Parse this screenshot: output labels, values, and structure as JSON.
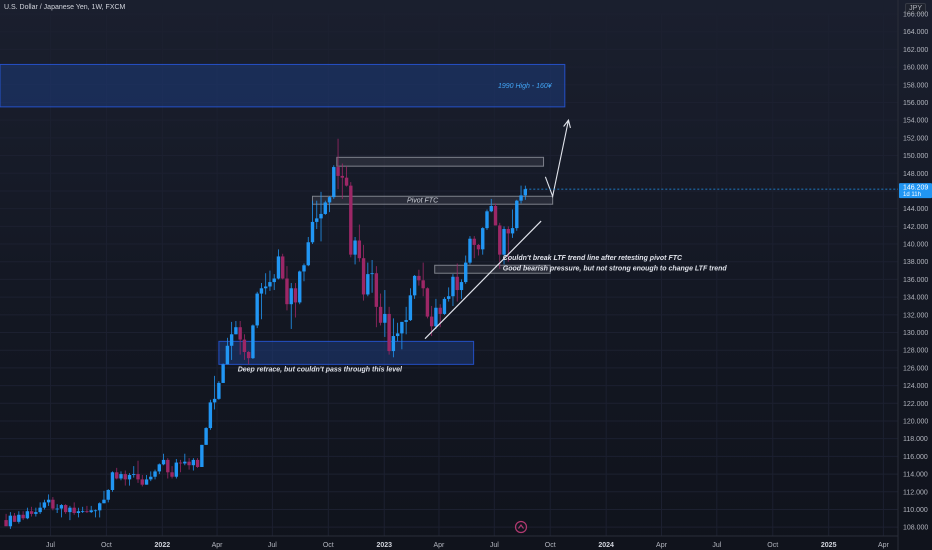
{
  "header": {
    "title": "U.S. Dollar / Japanese Yen, 1W, FXCM",
    "currency": "JPY"
  },
  "price_badge": {
    "price": "146.209",
    "countdown": "1d 11h"
  },
  "colors": {
    "background": "#131722",
    "bull": "#2196f3",
    "bear": "#9c2766",
    "grid": "#1c2030",
    "zone": "#1e3a7a",
    "text": "#b2b5be"
  },
  "chart_data": {
    "type": "candlestick",
    "ylim": [
      107,
      166
    ],
    "y_ticks": [
      108,
      110,
      112,
      114,
      116,
      118,
      120,
      122,
      124,
      126,
      128,
      130,
      132,
      134,
      136,
      138,
      140,
      142,
      144,
      146,
      148,
      150,
      152,
      154,
      156,
      158,
      160,
      162,
      164,
      166
    ],
    "x_ticks": [
      {
        "label": "Jul",
        "date": "2021-07-01"
      },
      {
        "label": "Oct",
        "date": "2021-10-01"
      },
      {
        "label": "2022",
        "date": "2022-01-01"
      },
      {
        "label": "Apr",
        "date": "2022-04-01"
      },
      {
        "label": "Jul",
        "date": "2022-07-01"
      },
      {
        "label": "Oct",
        "date": "2022-10-01"
      },
      {
        "label": "2023",
        "date": "2023-01-01"
      },
      {
        "label": "Apr",
        "date": "2023-04-01"
      },
      {
        "label": "Jul",
        "date": "2023-07-01"
      },
      {
        "label": "Oct",
        "date": "2023-10-01"
      },
      {
        "label": "2024",
        "date": "2024-01-01"
      },
      {
        "label": "Apr",
        "date": "2024-04-01"
      },
      {
        "label": "Jul",
        "date": "2024-07-01"
      },
      {
        "label": "Oct",
        "date": "2024-10-01"
      },
      {
        "label": "2025",
        "date": "2025-01-01"
      },
      {
        "label": "Apr",
        "date": "2025-04-01"
      }
    ],
    "x_range": [
      "2021-04-09",
      "2025-04-25"
    ],
    "candles": [
      {
        "t": "2021-04-19",
        "o": 108.8,
        "h": 109.5,
        "l": 108.4,
        "c": 108.1
      },
      {
        "t": "2021-04-26",
        "o": 108.1,
        "h": 109.7,
        "l": 107.8,
        "c": 109.3
      },
      {
        "t": "2021-05-03",
        "o": 109.3,
        "h": 109.6,
        "l": 108.6,
        "c": 108.6
      },
      {
        "t": "2021-05-10",
        "o": 108.6,
        "h": 109.8,
        "l": 108.4,
        "c": 109.4
      },
      {
        "t": "2021-05-17",
        "o": 109.4,
        "h": 109.8,
        "l": 108.8,
        "c": 109.0
      },
      {
        "t": "2021-05-24",
        "o": 109.0,
        "h": 110.2,
        "l": 108.9,
        "c": 109.8
      },
      {
        "t": "2021-05-31",
        "o": 109.8,
        "h": 110.3,
        "l": 109.2,
        "c": 109.5
      },
      {
        "t": "2021-06-07",
        "o": 109.5,
        "h": 110.2,
        "l": 109.2,
        "c": 109.7
      },
      {
        "t": "2021-06-14",
        "o": 109.7,
        "h": 110.8,
        "l": 109.5,
        "c": 110.2
      },
      {
        "t": "2021-06-21",
        "o": 110.2,
        "h": 111.1,
        "l": 110.0,
        "c": 110.8
      },
      {
        "t": "2021-06-28",
        "o": 110.8,
        "h": 111.7,
        "l": 110.4,
        "c": 111.1
      },
      {
        "t": "2021-07-05",
        "o": 111.1,
        "h": 111.4,
        "l": 109.9,
        "c": 110.1
      },
      {
        "t": "2021-07-12",
        "o": 110.1,
        "h": 110.6,
        "l": 109.6,
        "c": 110.1
      },
      {
        "t": "2021-07-19",
        "o": 110.1,
        "h": 110.6,
        "l": 109.1,
        "c": 110.5
      },
      {
        "t": "2021-07-26",
        "o": 110.5,
        "h": 110.6,
        "l": 109.5,
        "c": 109.7
      },
      {
        "t": "2021-08-02",
        "o": 109.7,
        "h": 110.4,
        "l": 108.8,
        "c": 110.2
      },
      {
        "t": "2021-08-09",
        "o": 110.2,
        "h": 110.8,
        "l": 109.4,
        "c": 109.6
      },
      {
        "t": "2021-08-16",
        "o": 109.6,
        "h": 110.2,
        "l": 109.1,
        "c": 109.8
      },
      {
        "t": "2021-08-23",
        "o": 109.8,
        "h": 110.3,
        "l": 109.6,
        "c": 109.8
      },
      {
        "t": "2021-08-30",
        "o": 109.8,
        "h": 110.4,
        "l": 109.6,
        "c": 109.7
      },
      {
        "t": "2021-09-06",
        "o": 109.7,
        "h": 110.4,
        "l": 109.6,
        "c": 109.9
      },
      {
        "t": "2021-09-13",
        "o": 109.9,
        "h": 110.0,
        "l": 109.1,
        "c": 109.9
      },
      {
        "t": "2021-09-20",
        "o": 109.9,
        "h": 110.8,
        "l": 109.1,
        "c": 110.7
      },
      {
        "t": "2021-09-27",
        "o": 110.7,
        "h": 112.1,
        "l": 110.7,
        "c": 111.1
      },
      {
        "t": "2021-10-04",
        "o": 111.1,
        "h": 112.3,
        "l": 110.8,
        "c": 112.2
      },
      {
        "t": "2021-10-11",
        "o": 112.2,
        "h": 114.3,
        "l": 112.0,
        "c": 114.2
      },
      {
        "t": "2021-10-18",
        "o": 114.2,
        "h": 114.7,
        "l": 113.4,
        "c": 113.5
      },
      {
        "t": "2021-10-25",
        "o": 113.5,
        "h": 114.3,
        "l": 113.3,
        "c": 114.0
      },
      {
        "t": "2021-11-01",
        "o": 114.0,
        "h": 114.4,
        "l": 112.7,
        "c": 113.4
      },
      {
        "t": "2021-11-08",
        "o": 113.4,
        "h": 114.1,
        "l": 112.7,
        "c": 113.9
      },
      {
        "t": "2021-11-15",
        "o": 113.9,
        "h": 114.9,
        "l": 113.6,
        "c": 114.0
      },
      {
        "t": "2021-11-22",
        "o": 114.0,
        "h": 115.5,
        "l": 113.0,
        "c": 113.4
      },
      {
        "t": "2021-11-29",
        "o": 113.4,
        "h": 113.9,
        "l": 112.6,
        "c": 112.8
      },
      {
        "t": "2021-12-06",
        "o": 112.8,
        "h": 113.9,
        "l": 112.8,
        "c": 113.4
      },
      {
        "t": "2021-12-13",
        "o": 113.4,
        "h": 114.3,
        "l": 113.2,
        "c": 113.7
      },
      {
        "t": "2021-12-20",
        "o": 113.7,
        "h": 114.5,
        "l": 113.4,
        "c": 114.3
      },
      {
        "t": "2021-12-27",
        "o": 114.3,
        "h": 115.2,
        "l": 114.0,
        "c": 115.1
      },
      {
        "t": "2022-01-03",
        "o": 115.1,
        "h": 116.3,
        "l": 115.0,
        "c": 115.6
      },
      {
        "t": "2022-01-10",
        "o": 115.6,
        "h": 115.8,
        "l": 113.5,
        "c": 114.2
      },
      {
        "t": "2022-01-17",
        "o": 114.2,
        "h": 114.9,
        "l": 113.5,
        "c": 113.7
      },
      {
        "t": "2022-01-24",
        "o": 113.7,
        "h": 115.7,
        "l": 113.5,
        "c": 115.3
      },
      {
        "t": "2022-01-31",
        "o": 115.3,
        "h": 115.6,
        "l": 114.2,
        "c": 115.2
      },
      {
        "t": "2022-02-07",
        "o": 115.2,
        "h": 116.3,
        "l": 115.0,
        "c": 115.4
      },
      {
        "t": "2022-02-14",
        "o": 115.4,
        "h": 115.8,
        "l": 114.5,
        "c": 115.0
      },
      {
        "t": "2022-02-21",
        "o": 115.0,
        "h": 115.8,
        "l": 114.4,
        "c": 115.6
      },
      {
        "t": "2022-02-28",
        "o": 115.6,
        "h": 115.8,
        "l": 114.7,
        "c": 114.8
      },
      {
        "t": "2022-03-07",
        "o": 114.8,
        "h": 117.3,
        "l": 114.8,
        "c": 117.3
      },
      {
        "t": "2022-03-14",
        "o": 117.3,
        "h": 119.3,
        "l": 117.3,
        "c": 119.2
      },
      {
        "t": "2022-03-21",
        "o": 119.2,
        "h": 122.4,
        "l": 119.0,
        "c": 122.1
      },
      {
        "t": "2022-03-28",
        "o": 122.1,
        "h": 125.1,
        "l": 121.3,
        "c": 122.5
      },
      {
        "t": "2022-04-04",
        "o": 122.5,
        "h": 124.5,
        "l": 122.4,
        "c": 124.3
      },
      {
        "t": "2022-04-11",
        "o": 124.3,
        "h": 126.5,
        "l": 124.3,
        "c": 126.4
      },
      {
        "t": "2022-04-18",
        "o": 126.4,
        "h": 129.4,
        "l": 126.4,
        "c": 128.5
      },
      {
        "t": "2022-04-25",
        "o": 128.5,
        "h": 131.2,
        "l": 126.9,
        "c": 129.8
      },
      {
        "t": "2022-05-02",
        "o": 129.8,
        "h": 131.3,
        "l": 129.8,
        "c": 130.6
      },
      {
        "t": "2022-05-09",
        "o": 130.6,
        "h": 131.3,
        "l": 127.5,
        "c": 129.2
      },
      {
        "t": "2022-05-16",
        "o": 129.2,
        "h": 129.8,
        "l": 126.9,
        "c": 127.8
      },
      {
        "t": "2022-05-23",
        "o": 127.8,
        "h": 127.9,
        "l": 126.4,
        "c": 127.1
      },
      {
        "t": "2022-05-30",
        "o": 127.1,
        "h": 130.9,
        "l": 127.0,
        "c": 130.8
      },
      {
        "t": "2022-06-06",
        "o": 130.8,
        "h": 134.6,
        "l": 130.5,
        "c": 134.4
      },
      {
        "t": "2022-06-13",
        "o": 134.4,
        "h": 135.6,
        "l": 131.5,
        "c": 135.0
      },
      {
        "t": "2022-06-20",
        "o": 135.0,
        "h": 136.7,
        "l": 134.3,
        "c": 135.2
      },
      {
        "t": "2022-06-27",
        "o": 135.2,
        "h": 137.0,
        "l": 134.7,
        "c": 135.7
      },
      {
        "t": "2022-07-04",
        "o": 135.7,
        "h": 136.6,
        "l": 134.8,
        "c": 136.1
      },
      {
        "t": "2022-07-11",
        "o": 136.1,
        "h": 139.4,
        "l": 136.0,
        "c": 138.6
      },
      {
        "t": "2022-07-18",
        "o": 138.6,
        "h": 138.9,
        "l": 136.0,
        "c": 136.1
      },
      {
        "t": "2022-07-25",
        "o": 136.1,
        "h": 137.5,
        "l": 132.5,
        "c": 133.2
      },
      {
        "t": "2022-08-01",
        "o": 133.2,
        "h": 135.6,
        "l": 130.4,
        "c": 135.0
      },
      {
        "t": "2022-08-08",
        "o": 135.0,
        "h": 135.6,
        "l": 131.7,
        "c": 133.4
      },
      {
        "t": "2022-08-15",
        "o": 133.4,
        "h": 137.0,
        "l": 133.2,
        "c": 136.9
      },
      {
        "t": "2022-08-22",
        "o": 136.9,
        "h": 137.8,
        "l": 135.8,
        "c": 137.6
      },
      {
        "t": "2022-08-29",
        "o": 137.6,
        "h": 140.8,
        "l": 137.5,
        "c": 140.2
      },
      {
        "t": "2022-09-05",
        "o": 140.2,
        "h": 144.9,
        "l": 140.0,
        "c": 142.5
      },
      {
        "t": "2022-09-12",
        "o": 142.5,
        "h": 144.9,
        "l": 141.7,
        "c": 142.9
      },
      {
        "t": "2022-09-19",
        "o": 142.9,
        "h": 145.9,
        "l": 140.3,
        "c": 143.4
      },
      {
        "t": "2022-09-26",
        "o": 143.4,
        "h": 144.9,
        "l": 143.3,
        "c": 144.7
      },
      {
        "t": "2022-10-03",
        "o": 144.7,
        "h": 145.4,
        "l": 143.6,
        "c": 145.3
      },
      {
        "t": "2022-10-10",
        "o": 145.3,
        "h": 148.9,
        "l": 145.1,
        "c": 148.7
      },
      {
        "t": "2022-10-17",
        "o": 148.7,
        "h": 151.9,
        "l": 146.2,
        "c": 147.7
      },
      {
        "t": "2022-10-24",
        "o": 147.7,
        "h": 149.1,
        "l": 145.1,
        "c": 147.5
      },
      {
        "t": "2022-10-31",
        "o": 147.5,
        "h": 148.8,
        "l": 146.5,
        "c": 146.6
      },
      {
        "t": "2022-11-07",
        "o": 146.6,
        "h": 147.0,
        "l": 138.5,
        "c": 138.8
      },
      {
        "t": "2022-11-14",
        "o": 138.8,
        "h": 140.8,
        "l": 137.7,
        "c": 140.4
      },
      {
        "t": "2022-11-21",
        "o": 140.4,
        "h": 142.2,
        "l": 138.0,
        "c": 138.4
      },
      {
        "t": "2022-11-28",
        "o": 138.4,
        "h": 139.9,
        "l": 133.6,
        "c": 134.3
      },
      {
        "t": "2022-12-05",
        "o": 134.3,
        "h": 137.9,
        "l": 134.1,
        "c": 136.6
      },
      {
        "t": "2022-12-12",
        "o": 136.6,
        "h": 138.2,
        "l": 134.5,
        "c": 136.7
      },
      {
        "t": "2022-12-19",
        "o": 136.7,
        "h": 137.5,
        "l": 130.6,
        "c": 132.9
      },
      {
        "t": "2022-12-26",
        "o": 132.9,
        "h": 134.4,
        "l": 130.8,
        "c": 131.1
      },
      {
        "t": "2023-01-02",
        "o": 131.1,
        "h": 134.8,
        "l": 129.5,
        "c": 132.1
      },
      {
        "t": "2023-01-09",
        "o": 132.1,
        "h": 132.9,
        "l": 127.5,
        "c": 127.9
      },
      {
        "t": "2023-01-16",
        "o": 127.9,
        "h": 131.6,
        "l": 127.2,
        "c": 129.6
      },
      {
        "t": "2023-01-23",
        "o": 129.6,
        "h": 131.1,
        "l": 129.0,
        "c": 129.9
      },
      {
        "t": "2023-01-30",
        "o": 129.9,
        "h": 131.2,
        "l": 128.1,
        "c": 131.2
      },
      {
        "t": "2023-02-06",
        "o": 131.2,
        "h": 132.9,
        "l": 129.8,
        "c": 131.4
      },
      {
        "t": "2023-02-13",
        "o": 131.4,
        "h": 135.0,
        "l": 131.3,
        "c": 134.2
      },
      {
        "t": "2023-02-20",
        "o": 134.2,
        "h": 136.5,
        "l": 133.8,
        "c": 136.4
      },
      {
        "t": "2023-02-27",
        "o": 136.4,
        "h": 137.1,
        "l": 135.3,
        "c": 135.9
      },
      {
        "t": "2023-03-06",
        "o": 135.9,
        "h": 137.9,
        "l": 134.1,
        "c": 135.0
      },
      {
        "t": "2023-03-13",
        "o": 135.0,
        "h": 135.1,
        "l": 131.6,
        "c": 131.8
      },
      {
        "t": "2023-03-20",
        "o": 131.8,
        "h": 133.0,
        "l": 129.6,
        "c": 130.7
      },
      {
        "t": "2023-03-27",
        "o": 130.7,
        "h": 133.8,
        "l": 130.4,
        "c": 132.8
      },
      {
        "t": "2023-04-03",
        "o": 132.8,
        "h": 133.2,
        "l": 130.6,
        "c": 132.1
      },
      {
        "t": "2023-04-10",
        "o": 132.1,
        "h": 134.0,
        "l": 132.0,
        "c": 133.8
      },
      {
        "t": "2023-04-17",
        "o": 133.8,
        "h": 135.1,
        "l": 133.5,
        "c": 134.1
      },
      {
        "t": "2023-04-24",
        "o": 134.1,
        "h": 136.6,
        "l": 133.0,
        "c": 136.3
      },
      {
        "t": "2023-05-01",
        "o": 136.3,
        "h": 137.8,
        "l": 133.5,
        "c": 134.8
      },
      {
        "t": "2023-05-08",
        "o": 134.8,
        "h": 136.0,
        "l": 133.8,
        "c": 135.7
      },
      {
        "t": "2023-05-15",
        "o": 135.7,
        "h": 138.7,
        "l": 135.5,
        "c": 137.9
      },
      {
        "t": "2023-05-22",
        "o": 137.9,
        "h": 140.9,
        "l": 137.7,
        "c": 140.6
      },
      {
        "t": "2023-05-29",
        "o": 140.6,
        "h": 140.9,
        "l": 138.4,
        "c": 139.9
      },
      {
        "t": "2023-06-05",
        "o": 139.9,
        "h": 140.0,
        "l": 138.7,
        "c": 139.4
      },
      {
        "t": "2023-06-12",
        "o": 139.4,
        "h": 141.9,
        "l": 138.8,
        "c": 141.8
      },
      {
        "t": "2023-06-19",
        "o": 141.8,
        "h": 143.9,
        "l": 141.6,
        "c": 143.7
      },
      {
        "t": "2023-06-26",
        "o": 143.7,
        "h": 145.1,
        "l": 143.6,
        "c": 144.3
      },
      {
        "t": "2023-07-03",
        "o": 144.3,
        "h": 144.6,
        "l": 142.1,
        "c": 142.1
      },
      {
        "t": "2023-07-10",
        "o": 142.1,
        "h": 142.4,
        "l": 137.2,
        "c": 138.8
      },
      {
        "t": "2023-07-17",
        "o": 138.8,
        "h": 142.0,
        "l": 137.7,
        "c": 141.7
      },
      {
        "t": "2023-07-24",
        "o": 141.7,
        "h": 142.0,
        "l": 138.0,
        "c": 141.2
      },
      {
        "t": "2023-07-31",
        "o": 141.2,
        "h": 143.9,
        "l": 140.7,
        "c": 141.8
      },
      {
        "t": "2023-08-07",
        "o": 141.8,
        "h": 145.0,
        "l": 141.5,
        "c": 144.9
      },
      {
        "t": "2023-08-14",
        "o": 144.9,
        "h": 146.6,
        "l": 144.6,
        "c": 145.5
      },
      {
        "t": "2023-08-21",
        "o": 145.5,
        "h": 146.6,
        "l": 145.0,
        "c": 146.2
      }
    ],
    "current_price": 146.209,
    "levels": [
      {
        "id": "zone-1990-high",
        "from": "2021-04-09",
        "to": "2023-10-25",
        "low": 155.5,
        "high": 160.3,
        "label": "1990 High - 160¥"
      },
      {
        "id": "zone-top",
        "from": "2022-10-15",
        "to": "2023-09-20",
        "low": 148.8,
        "high": 149.8,
        "label": ""
      },
      {
        "id": "zone-pivot",
        "from": "2022-09-05",
        "to": "2023-10-05",
        "low": 144.5,
        "high": 145.4,
        "label": "Pivot FTC"
      },
      {
        "id": "zone-retest",
        "from": "2023-03-25",
        "to": "2023-10-01",
        "low": 136.7,
        "high": 137.6,
        "label": ""
      },
      {
        "id": "zone-support",
        "from": "2022-04-04",
        "to": "2023-05-28",
        "low": 126.4,
        "high": 129.0,
        "label": ""
      }
    ],
    "annotations": [
      {
        "text": "Couldn't break LTF trend line after retesting pivot FTC",
        "date": "2023-07-15",
        "price": 138.2
      },
      {
        "text": "Good bearish pressure, but not strong enough to change LTF trend",
        "date": "2023-07-15",
        "price": 137.0
      },
      {
        "text": "Deep retrace, but couldn't pass through this level",
        "date": "2022-05-05",
        "price": 125.6
      }
    ],
    "trendline": {
      "from": {
        "date": "2023-03-09",
        "price": 129.3
      },
      "to": {
        "date": "2023-09-16",
        "price": 142.6
      }
    },
    "projection": [
      {
        "date": "2023-09-23",
        "price": 147.6
      },
      {
        "date": "2023-10-05",
        "price": 145.4
      },
      {
        "date": "2023-10-31",
        "price": 154.0
      }
    ]
  }
}
